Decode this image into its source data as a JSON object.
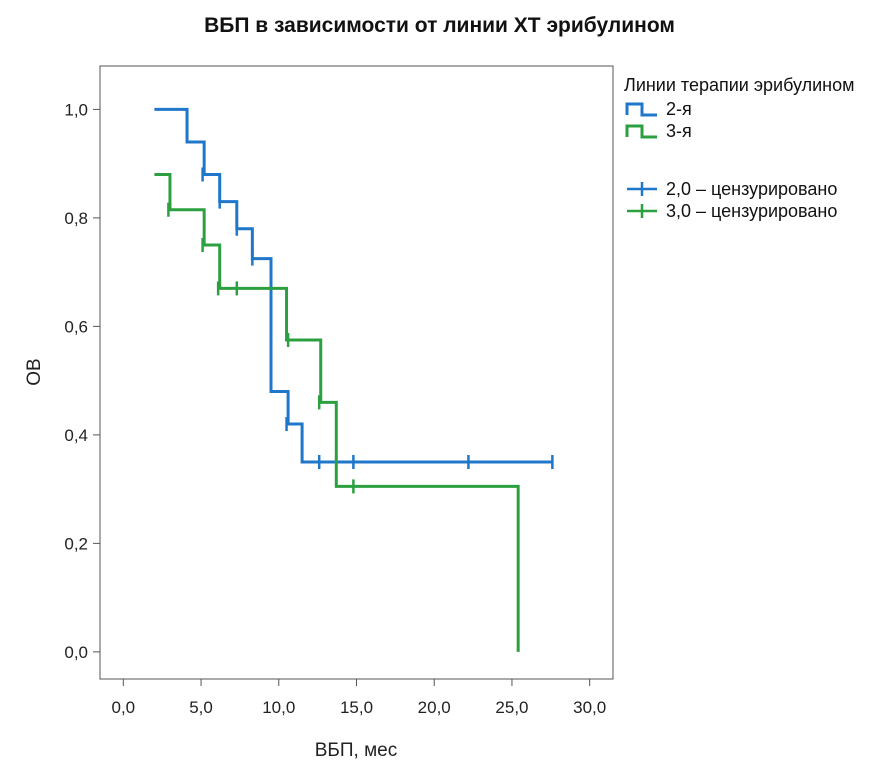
{
  "title": "ВБП в зависимости от линии ХТ эрибулином",
  "legend": {
    "title": "Линии терапии эрибулином",
    "items": [
      {
        "label": "2-я",
        "kind": "line",
        "color": "#1f77c9"
      },
      {
        "label": "3-я",
        "kind": "line",
        "color": "#2ca040"
      },
      {
        "label": "2,0 – цензурировано",
        "kind": "censor",
        "color": "#1f77c9"
      },
      {
        "label": "3,0 – цензурировано",
        "kind": "censor",
        "color": "#2ca040"
      }
    ]
  },
  "chart_data": {
    "type": "line",
    "subtype": "kaplan-meier-step",
    "xlabel": "ВБП, мес",
    "ylabel": "ОВ",
    "xlim": [
      -1.5,
      31.5
    ],
    "ylim": [
      -0.05,
      1.08
    ],
    "x_ticks": [
      0,
      5,
      10,
      15,
      20,
      25,
      30
    ],
    "x_tick_labels": [
      "0,0",
      "5,0",
      "10,0",
      "15,0",
      "20,0",
      "25,0",
      "30,0"
    ],
    "y_ticks": [
      0,
      0.2,
      0.4,
      0.6,
      0.8,
      1.0
    ],
    "y_tick_labels": [
      "0,0",
      "0,2",
      "0,4",
      "0,6",
      "0,8",
      "1,0"
    ],
    "grid": false,
    "legend_position": "right",
    "series": [
      {
        "name": "2-я",
        "color": "#1f77c9",
        "steps": [
          [
            2.0,
            1.0
          ],
          [
            4.1,
            0.94
          ],
          [
            5.2,
            0.88
          ],
          [
            6.2,
            0.83
          ],
          [
            7.3,
            0.78
          ],
          [
            8.3,
            0.725
          ],
          [
            9.5,
            0.48
          ],
          [
            10.6,
            0.42
          ],
          [
            11.5,
            0.35
          ],
          [
            27.6,
            0.35
          ]
        ],
        "censored": [
          [
            5.1,
            0.88
          ],
          [
            6.2,
            0.83
          ],
          [
            7.3,
            0.78
          ],
          [
            8.3,
            0.725
          ],
          [
            10.5,
            0.42
          ],
          [
            12.6,
            0.35
          ],
          [
            14.8,
            0.35
          ],
          [
            22.2,
            0.35
          ],
          [
            27.6,
            0.35
          ]
        ]
      },
      {
        "name": "3-я",
        "color": "#2ca040",
        "steps": [
          [
            2.0,
            0.88
          ],
          [
            3.0,
            0.815
          ],
          [
            5.2,
            0.75
          ],
          [
            6.2,
            0.67
          ],
          [
            10.5,
            0.575
          ],
          [
            12.7,
            0.46
          ],
          [
            13.7,
            0.305
          ],
          [
            25.4,
            0.305
          ],
          [
            25.4,
            0.0
          ]
        ],
        "censored": [
          [
            2.9,
            0.815
          ],
          [
            5.1,
            0.75
          ],
          [
            6.1,
            0.67
          ],
          [
            7.3,
            0.67
          ],
          [
            10.6,
            0.575
          ],
          [
            12.6,
            0.46
          ],
          [
            14.8,
            0.305
          ]
        ]
      }
    ]
  }
}
